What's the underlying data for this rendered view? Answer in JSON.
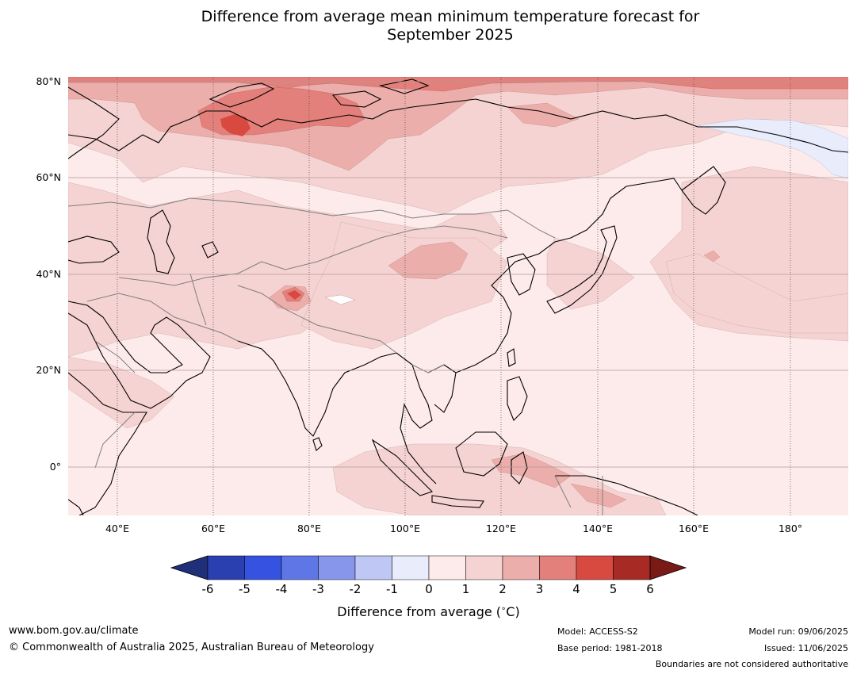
{
  "title_line1": "Difference from average mean minimum temperature forecast for",
  "title_line2": "September 2025",
  "map": {
    "lat_ticks": [
      "80°N",
      "60°N",
      "40°N",
      "20°N",
      "0°"
    ],
    "lon_ticks": [
      "40°E",
      "60°E",
      "80°E",
      "100°E",
      "120°E",
      "140°E",
      "160°E",
      "180°"
    ],
    "colorbar_ticks": [
      "-6",
      "-5",
      "-4",
      "-3",
      "-2",
      "-1",
      "0",
      "1",
      "2",
      "3",
      "4",
      "5",
      "6"
    ],
    "colorbar_colors": [
      "#1f2f7a",
      "#2a3fb0",
      "#3553e0",
      "#5f77e6",
      "#8796ea",
      "#bfc7f4",
      "#e8ecfb",
      "#fdeaea",
      "#f5d3d2",
      "#ecaeab",
      "#e4807b",
      "#d84a40",
      "#a82a24",
      "#7a1a16"
    ],
    "colorbar_label": "Difference from average ($^\\circ$C)",
    "colorbar_label_text": "Difference from average (",
    "colorbar_label_unit": "C)",
    "colorbar_label_deg": "∘"
  },
  "footer": {
    "url": "www.bom.gov.au/climate",
    "copyright": "© Commonwealth of Australia 2025, Australian Bureau of Meteorology",
    "model": "Model: ACCESS-S2",
    "base_period": "Base period: 1981-2018",
    "model_run": "Model run: 09/06/2025",
    "issued": "Issued: 11/06/2025",
    "boundaries": "Boundaries are not considered authoritative"
  }
}
